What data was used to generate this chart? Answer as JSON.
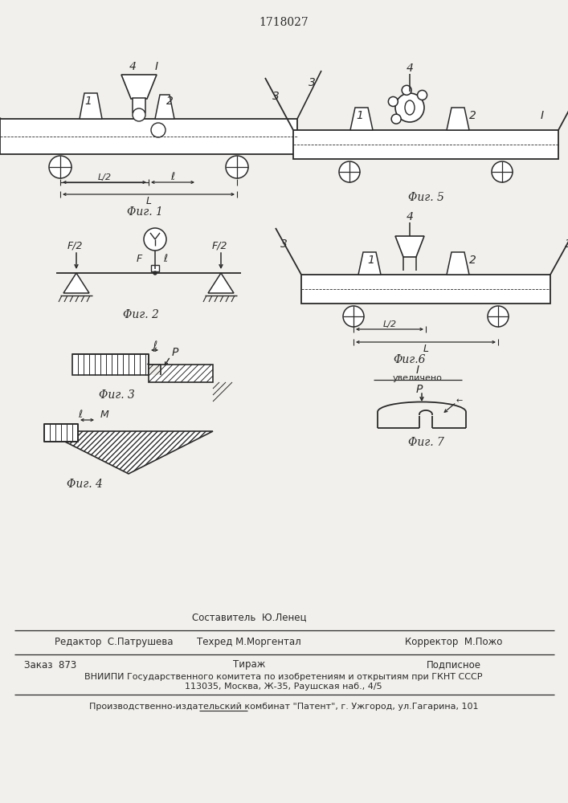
{
  "patent_number": "1718027",
  "bg_color": "#f2f0ec",
  "line_color": "#2a2a2a",
  "fig1_caption": "Φиг. 1",
  "fig2_caption": "Φиг. 2",
  "fig3_caption": "Φиг. 3",
  "fig4_caption": "Φиг. 4",
  "fig5_caption": "Φиг. 5",
  "fig6_caption": "Φиг.6",
  "fig7_caption": "Φиг. 7",
  "footer_sestavitel": "Составитель  Ю.Ленец",
  "footer_tehred": "Техред М.Моргентал",
  "footer_redaktor": "Редактор  С.Патрушева",
  "footer_korrektor": "Корректор  М.Пожо",
  "footer_zakaz": "Заказ  873",
  "footer_tirazh": "Тираж",
  "footer_podpisnoe": "Подписное",
  "footer_vniipи": "ВНИИПИ Государственного комитета по изобретениям и открытиям при ГКНТ СССР",
  "footer_address": "113035, Москва, Ж-35, Раушская наб., 4/5",
  "footer_proizv": "Производственно-издательский комбинат \"Патент\", г. Ужгород, ул.Гагарина, 101",
  "uvelicheno": "увеличено"
}
